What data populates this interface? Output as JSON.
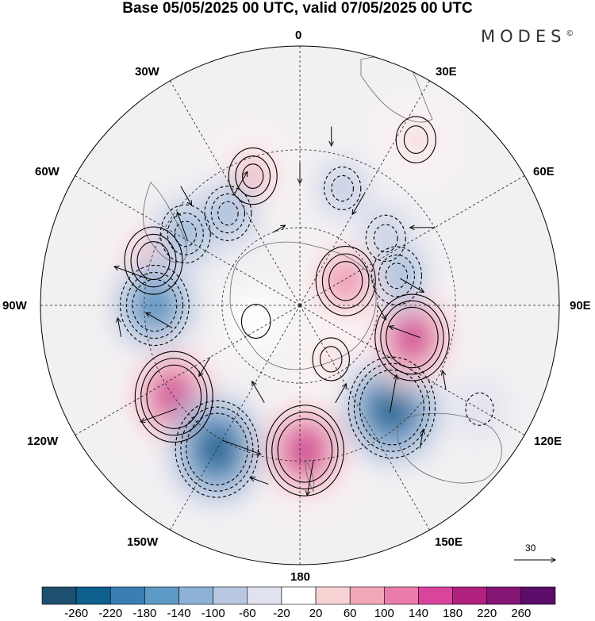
{
  "title": "Base 05/05/2025 00 UTC, valid 07/05/2025 00 UTC",
  "brand": "MODES",
  "brand_mark": "©",
  "longitude_labels": {
    "n0": "0",
    "n30e": "30E",
    "n60e": "60E",
    "n90e": "90E",
    "n120e": "120E",
    "n150e": "150E",
    "n180": "180",
    "n150w": "150W",
    "n120w": "120W",
    "n90w": "90W",
    "n60w": "60W",
    "n30w": "30W"
  },
  "reference_vector": "30",
  "colorbar": {
    "colors": [
      "#1d4f6e",
      "#0f5f8f",
      "#3a7fb4",
      "#5e9ac6",
      "#8eb2d6",
      "#b8c8e1",
      "#e0e2ef",
      "#ffffff",
      "#f7d3d3",
      "#f2a7b9",
      "#ea7cac",
      "#d9459d",
      "#b0207f",
      "#851676",
      "#5a0e6a"
    ],
    "labels": [
      "-260",
      "-220",
      "-180",
      "-140",
      "-100",
      "-60",
      "-20",
      "20",
      "60",
      "100",
      "140",
      "180",
      "220",
      "260"
    ]
  },
  "field_anomalies": [
    {
      "lon": -73,
      "lat": -31,
      "value": 150,
      "name": "anomaly-positive"
    },
    {
      "lon": -20,
      "lat": -37,
      "value": 110,
      "name": "anomaly-positive"
    },
    {
      "lon": 20,
      "lat": -42,
      "value": -60,
      "name": "anomaly-negative"
    },
    {
      "lon": 52,
      "lat": -48,
      "value": -80,
      "name": "anomaly-negative"
    },
    {
      "lon": -38,
      "lat": -45,
      "value": -100,
      "name": "anomaly-negative"
    },
    {
      "lon": -58,
      "lat": -38,
      "value": -120,
      "name": "anomaly-negative"
    },
    {
      "lon": -90,
      "lat": -34,
      "value": -200,
      "name": "anomaly-negative"
    },
    {
      "lon": -126,
      "lat": -30,
      "value": 240,
      "name": "anomaly-positive"
    },
    {
      "lon": -150,
      "lat": -26,
      "value": -260,
      "name": "anomaly-negative"
    },
    {
      "lon": 178,
      "lat": -34,
      "value": 240,
      "name": "anomaly-positive"
    },
    {
      "lon": 138,
      "lat": -37,
      "value": -280,
      "name": "anomaly-negative"
    },
    {
      "lon": 106,
      "lat": -45,
      "value": 220,
      "name": "anomaly-positive"
    },
    {
      "lon": 73,
      "lat": -51,
      "value": -120,
      "name": "anomaly-negative"
    },
    {
      "lon": 62,
      "lat": -70,
      "value": 160,
      "name": "anomaly-positive"
    },
    {
      "lon": 35,
      "lat": -12,
      "value": 80,
      "name": "anomaly-positive"
    },
    {
      "lon": 120,
      "lat": -10,
      "value": -40,
      "name": "anomaly-negative"
    },
    {
      "lon": -110,
      "lat": -72,
      "value": 50,
      "name": "anomaly-positive"
    },
    {
      "lon": 150,
      "lat": -66,
      "value": 60,
      "name": "anomaly-positive"
    }
  ],
  "wind_vectors": [
    {
      "lon": -80,
      "lat": -30,
      "dir": 200,
      "speed": 25
    },
    {
      "lon": -130,
      "lat": -28,
      "dir": 160,
      "speed": 28
    },
    {
      "lon": -150,
      "lat": -30,
      "dir": 20,
      "speed": 30
    },
    {
      "lon": 175,
      "lat": -30,
      "dir": 100,
      "speed": 26
    },
    {
      "lon": 140,
      "lat": -36,
      "dir": 280,
      "speed": 28
    },
    {
      "lon": 105,
      "lat": -42,
      "dir": 200,
      "speed": 24
    },
    {
      "lon": 75,
      "lat": -50,
      "dir": 30,
      "speed": 20
    },
    {
      "lon": 30,
      "lat": -40,
      "dir": 120,
      "speed": 18
    },
    {
      "lon": -30,
      "lat": -40,
      "dir": 300,
      "speed": 18
    },
    {
      "lon": -60,
      "lat": -40,
      "dir": 250,
      "speed": 22
    },
    {
      "lon": -100,
      "lat": -40,
      "dir": 210,
      "speed": 22
    },
    {
      "lon": 0,
      "lat": -35,
      "dir": 90,
      "speed": 15
    },
    {
      "lon": 60,
      "lat": -30,
      "dir": 180,
      "speed": 18
    },
    {
      "lon": -45,
      "lat": -25,
      "dir": 60,
      "speed": 16
    },
    {
      "lon": 160,
      "lat": -50,
      "dir": 300,
      "speed": 16
    },
    {
      "lon": -160,
      "lat": -50,
      "dir": 240,
      "speed": 18
    },
    {
      "lon": 120,
      "lat": -25,
      "dir": 260,
      "speed": 14
    },
    {
      "lon": -120,
      "lat": -50,
      "dir": 120,
      "speed": 16
    },
    {
      "lon": 90,
      "lat": -60,
      "dir": 60,
      "speed": 12
    },
    {
      "lon": -20,
      "lat": -60,
      "dir": 330,
      "speed": 10
    },
    {
      "lon": 10,
      "lat": -20,
      "dir": 90,
      "speed": 14
    },
    {
      "lon": -100,
      "lat": -20,
      "dir": 260,
      "speed": 14
    },
    {
      "lon": 140,
      "lat": -18,
      "dir": 280,
      "speed": 14
    },
    {
      "lon": -170,
      "lat": -20,
      "dir": 200,
      "speed": 14
    }
  ]
}
